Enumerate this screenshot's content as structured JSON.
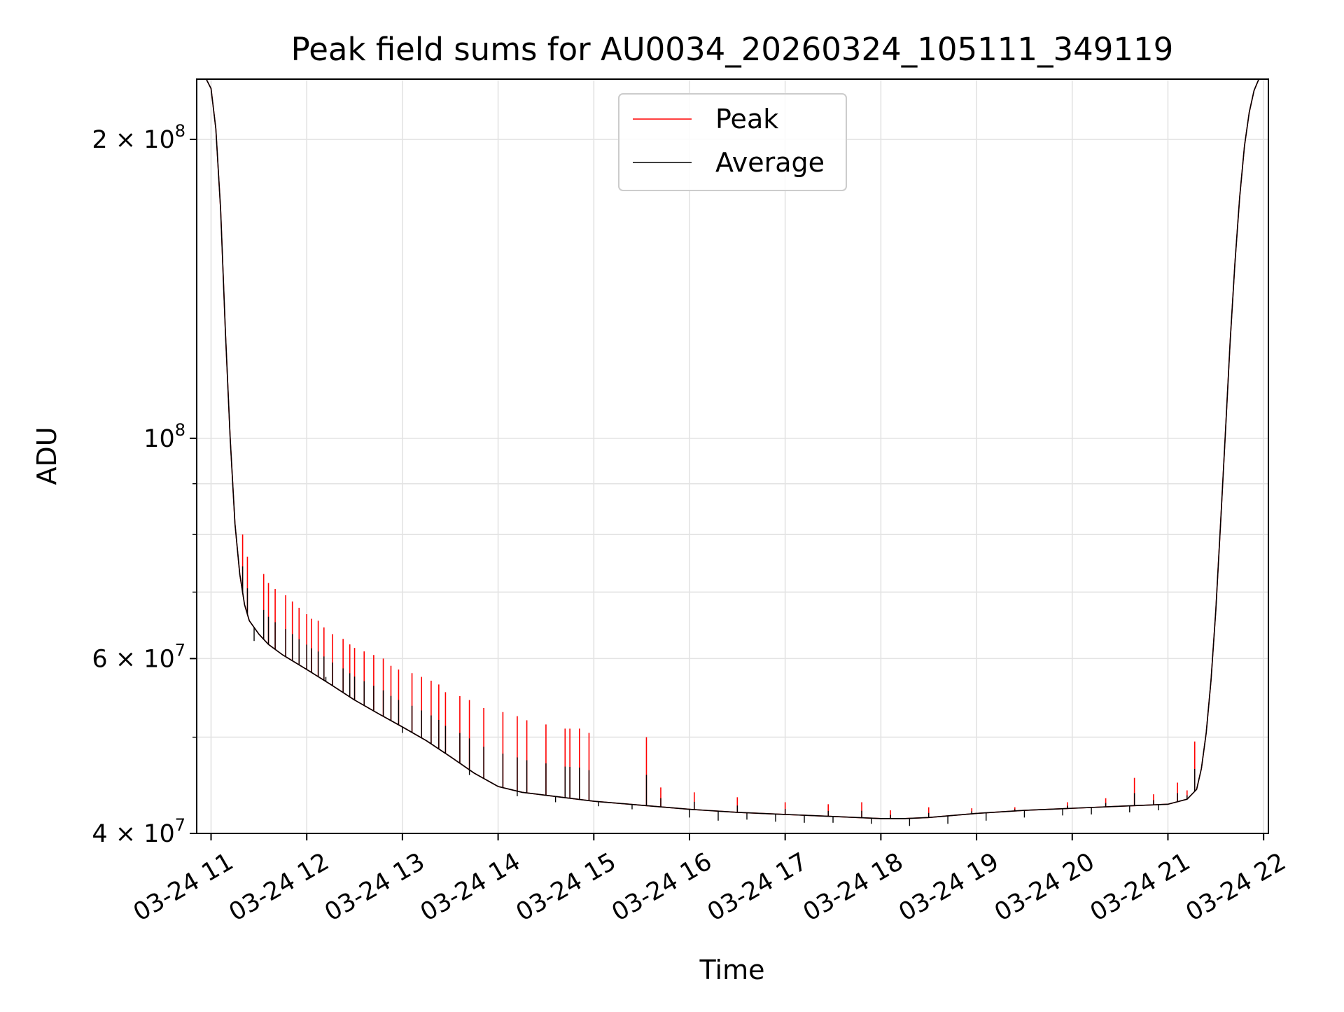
{
  "chart_data": {
    "type": "line",
    "title": "Peak field sums for AU0034_20260324_105111_349119",
    "xlabel": "Time",
    "ylabel": "ADU",
    "yscale": "log",
    "ylim": [
      40000000,
      230000000
    ],
    "xlim_hours": [
      10.85,
      22.05
    ],
    "grid": true,
    "legend_position": "upper center",
    "x_ticks": [
      {
        "hour": 11,
        "label": "03-24 11"
      },
      {
        "hour": 12,
        "label": "03-24 12"
      },
      {
        "hour": 13,
        "label": "03-24 13"
      },
      {
        "hour": 14,
        "label": "03-24 14"
      },
      {
        "hour": 15,
        "label": "03-24 15"
      },
      {
        "hour": 16,
        "label": "03-24 16"
      },
      {
        "hour": 17,
        "label": "03-24 17"
      },
      {
        "hour": 18,
        "label": "03-24 18"
      },
      {
        "hour": 19,
        "label": "03-24 19"
      },
      {
        "hour": 20,
        "label": "03-24 20"
      },
      {
        "hour": 21,
        "label": "03-24 21"
      },
      {
        "hour": 22,
        "label": "03-24 22"
      }
    ],
    "y_major_ticks": [
      {
        "value": 40000000,
        "mantissa": "4",
        "exponent": "7",
        "label": "4 × 10^7"
      },
      {
        "value": 60000000,
        "mantissa": "6",
        "exponent": "7",
        "label": "6 × 10^7"
      },
      {
        "value": 100000000,
        "mantissa": "",
        "exponent": "8",
        "label": "10^8"
      },
      {
        "value": 200000000,
        "mantissa": "2",
        "exponent": "8",
        "label": "2 × 10^8"
      }
    ],
    "y_minor_ticks": [
      50000000,
      70000000,
      80000000,
      90000000
    ],
    "series": [
      {
        "name": "Peak",
        "color": "#ff0000",
        "x_hours": [
          10.85,
          10.95,
          11.0,
          11.05,
          11.1,
          11.15,
          11.2,
          11.25,
          11.3,
          11.35,
          11.4,
          11.5,
          11.6,
          11.75,
          12.0,
          12.25,
          12.5,
          12.75,
          13.0,
          13.25,
          13.5,
          13.75,
          14.0,
          14.25,
          14.5,
          14.75,
          15.0,
          15.5,
          16.0,
          16.5,
          17.0,
          17.5,
          18.0,
          18.25,
          18.5,
          19.0,
          19.5,
          20.0,
          20.5,
          21.0,
          21.2,
          21.3,
          21.35,
          21.4,
          21.45,
          21.5,
          21.55,
          21.6,
          21.65,
          21.7,
          21.75,
          21.8,
          21.85,
          21.9,
          21.95,
          22.05
        ],
        "values": [
          230000000,
          230000000,
          225000000,
          205000000,
          170000000,
          128000000,
          100000000,
          82000000,
          73000000,
          68000000,
          65500000,
          63500000,
          62000000,
          60500000,
          58500000,
          56500000,
          54500000,
          52800000,
          51200000,
          49600000,
          47800000,
          46000000,
          44600000,
          44000000,
          43700000,
          43400000,
          43100000,
          42700000,
          42300000,
          42000000,
          41800000,
          41600000,
          41400000,
          41400000,
          41500000,
          41900000,
          42200000,
          42400000,
          42600000,
          42800000,
          43300000,
          44300000,
          46500000,
          50500000,
          57000000,
          67000000,
          82000000,
          101000000,
          125000000,
          150000000,
          175000000,
          197000000,
          213000000,
          224000000,
          230000000,
          230000000
        ]
      },
      {
        "name": "Average",
        "color": "#000000",
        "x_hours": [
          10.85,
          10.95,
          11.0,
          11.05,
          11.1,
          11.15,
          11.2,
          11.25,
          11.3,
          11.35,
          11.4,
          11.5,
          11.6,
          11.75,
          12.0,
          12.25,
          12.5,
          12.75,
          13.0,
          13.25,
          13.5,
          13.75,
          14.0,
          14.25,
          14.5,
          14.75,
          15.0,
          15.5,
          16.0,
          16.5,
          17.0,
          17.5,
          18.0,
          18.25,
          18.5,
          19.0,
          19.5,
          20.0,
          20.5,
          21.0,
          21.2,
          21.3,
          21.35,
          21.4,
          21.45,
          21.5,
          21.55,
          21.6,
          21.65,
          21.7,
          21.75,
          21.8,
          21.85,
          21.9,
          21.95,
          22.05
        ],
        "values": [
          230000000,
          230000000,
          225000000,
          205000000,
          170000000,
          128000000,
          100000000,
          82000000,
          73000000,
          68000000,
          65500000,
          63500000,
          62000000,
          60500000,
          58500000,
          56500000,
          54500000,
          52800000,
          51200000,
          49600000,
          47800000,
          46000000,
          44600000,
          44000000,
          43700000,
          43400000,
          43100000,
          42700000,
          42300000,
          42000000,
          41800000,
          41600000,
          41400000,
          41400000,
          41500000,
          41900000,
          42200000,
          42400000,
          42600000,
          42800000,
          43300000,
          44300000,
          46500000,
          50500000,
          57000000,
          67000000,
          82000000,
          101000000,
          125000000,
          150000000,
          175000000,
          197000000,
          213000000,
          224000000,
          230000000,
          230000000
        ]
      }
    ],
    "peak_spikes": [
      [
        11.33,
        80000000
      ],
      [
        11.38,
        76000000
      ],
      [
        11.55,
        73000000
      ],
      [
        11.6,
        71500000
      ],
      [
        11.67,
        70500000
      ],
      [
        11.78,
        69500000
      ],
      [
        11.85,
        68500000
      ],
      [
        11.92,
        67500000
      ],
      [
        12.0,
        66500000
      ],
      [
        12.05,
        65800000
      ],
      [
        12.12,
        65500000
      ],
      [
        12.18,
        64500000
      ],
      [
        12.27,
        63500000
      ],
      [
        12.38,
        62800000
      ],
      [
        12.45,
        62000000
      ],
      [
        12.5,
        61500000
      ],
      [
        12.6,
        61000000
      ],
      [
        12.7,
        60500000
      ],
      [
        12.8,
        60000000
      ],
      [
        12.88,
        59000000
      ],
      [
        12.96,
        58500000
      ],
      [
        13.1,
        58000000
      ],
      [
        13.2,
        57500000
      ],
      [
        13.3,
        57000000
      ],
      [
        13.38,
        56500000
      ],
      [
        13.45,
        55500000
      ],
      [
        13.6,
        55000000
      ],
      [
        13.7,
        54500000
      ],
      [
        13.85,
        53500000
      ],
      [
        14.05,
        53000000
      ],
      [
        14.2,
        52500000
      ],
      [
        14.3,
        52000000
      ],
      [
        14.5,
        51500000
      ],
      [
        14.7,
        51000000
      ],
      [
        14.75,
        51000000
      ],
      [
        14.85,
        51000000
      ],
      [
        14.95,
        50500000
      ],
      [
        15.55,
        50000000
      ],
      [
        15.7,
        44500000
      ],
      [
        16.05,
        44000000
      ],
      [
        16.5,
        43500000
      ],
      [
        17.0,
        43000000
      ],
      [
        17.45,
        42800000
      ],
      [
        17.8,
        43000000
      ],
      [
        18.1,
        42200000
      ],
      [
        18.5,
        42500000
      ],
      [
        18.95,
        42400000
      ],
      [
        19.4,
        42500000
      ],
      [
        19.95,
        43000000
      ],
      [
        20.35,
        43400000
      ],
      [
        20.65,
        45500000
      ],
      [
        20.85,
        43800000
      ],
      [
        21.1,
        45000000
      ],
      [
        21.2,
        44200000
      ],
      [
        21.28,
        49500000
      ]
    ],
    "average_dips": [
      [
        11.45,
        62500000
      ],
      [
        12.2,
        57500000
      ],
      [
        13.0,
        50500000
      ],
      [
        13.7,
        45800000
      ],
      [
        14.2,
        43600000
      ],
      [
        14.6,
        43000000
      ],
      [
        15.05,
        42600000
      ],
      [
        15.4,
        42300000
      ],
      [
        16.0,
        41500000
      ],
      [
        16.3,
        41200000
      ],
      [
        16.6,
        41300000
      ],
      [
        16.9,
        41100000
      ],
      [
        17.2,
        41000000
      ],
      [
        17.5,
        41000000
      ],
      [
        17.9,
        40900000
      ],
      [
        18.3,
        40700000
      ],
      [
        18.7,
        40900000
      ],
      [
        19.1,
        41200000
      ],
      [
        19.5,
        41500000
      ],
      [
        19.9,
        41700000
      ],
      [
        20.2,
        41800000
      ],
      [
        20.6,
        42000000
      ],
      [
        20.9,
        42200000
      ]
    ],
    "legend": [
      {
        "name": "Peak",
        "color": "#ff0000"
      },
      {
        "name": "Average",
        "color": "#000000"
      }
    ]
  }
}
